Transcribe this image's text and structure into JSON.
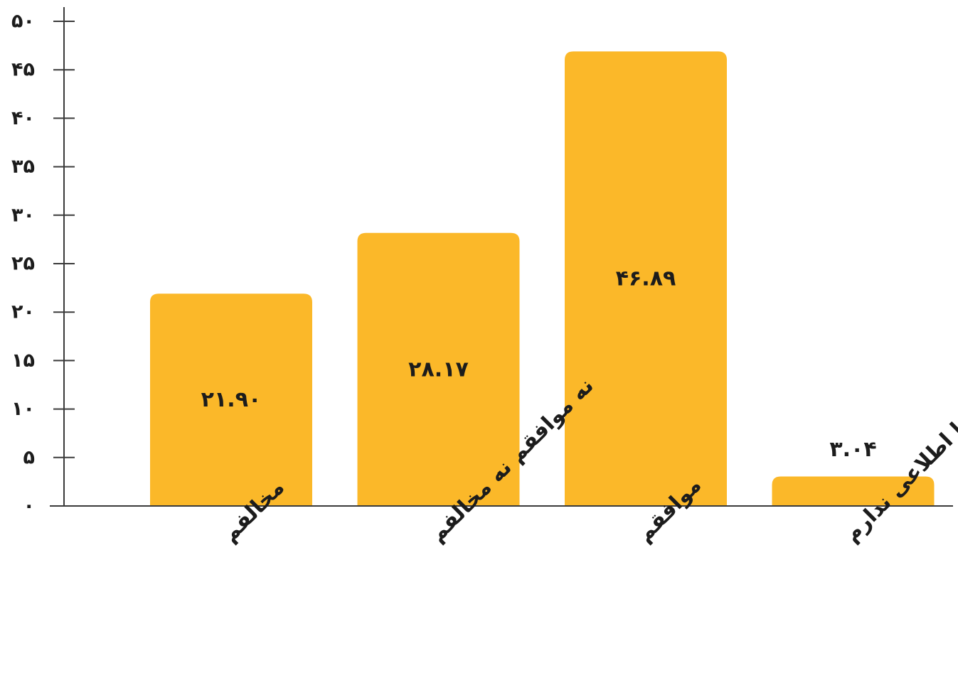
{
  "chart_data": {
    "type": "bar",
    "categories": [
      "مخالفم",
      "نه موافقم نه مخالفم",
      "موافقم",
      "نظر یا اطلاعی ندارم"
    ],
    "values": [
      21.9,
      28.17,
      46.89,
      3.04
    ],
    "value_labels": [
      "۲۱.۹۰",
      "۲۸.۱۷",
      "۴۶.۸۹",
      "۳.۰۴"
    ],
    "ylim": [
      0,
      50
    ],
    "yticks": [
      0,
      5,
      10,
      15,
      20,
      25,
      30,
      35,
      40,
      45,
      50
    ],
    "ytick_labels": [
      "۰",
      "۵",
      "۱۰",
      "۱۵",
      "۲۰",
      "۲۵",
      "۳۰",
      "۳۵",
      "۴۰",
      "۴۵",
      "۵۰"
    ],
    "title": "",
    "xlabel": "",
    "ylabel": "",
    "grid": false,
    "legend": "none",
    "bar_color": "#FBB829",
    "axis_color": "#3a3a3a",
    "text_color": "#1c1c1c"
  }
}
